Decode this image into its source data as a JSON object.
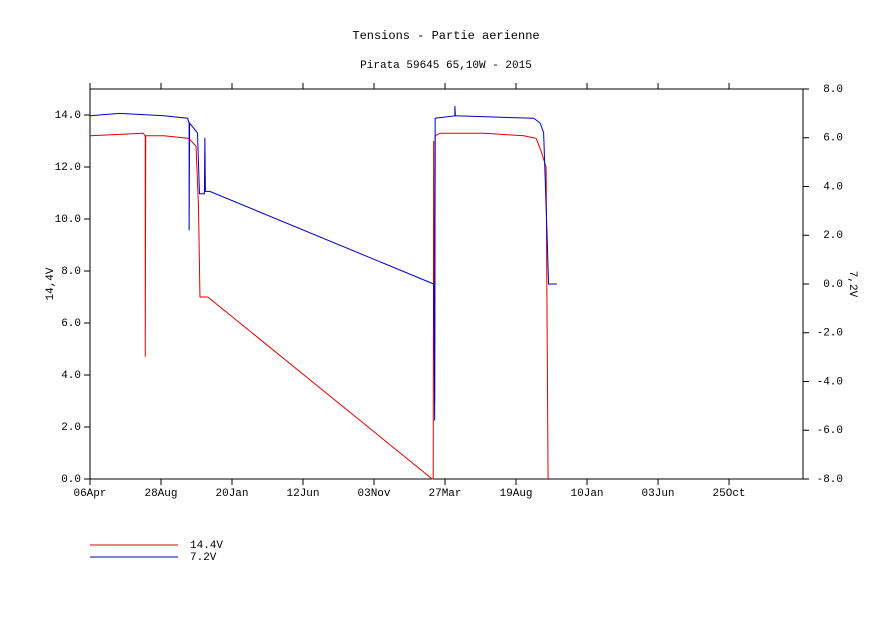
{
  "chart_data": {
    "type": "line",
    "title": "Tensions - Partie aerienne",
    "subtitle": "Pirata 59645 65,10W - 2015",
    "ylabel": "14,4V",
    "y2label": "7,2V",
    "xlim": [
      0,
      1446
    ],
    "xticks": [
      {
        "value": 0,
        "label": "06Apr"
      },
      {
        "value": 144,
        "label": "28Aug"
      },
      {
        "value": 288,
        "label": "20Jan"
      },
      {
        "value": 432,
        "label": "12Jun"
      },
      {
        "value": 576,
        "label": "03Nov"
      },
      {
        "value": 720,
        "label": "27Mar"
      },
      {
        "value": 864,
        "label": "19Aug"
      },
      {
        "value": 1008,
        "label": "10Jan"
      },
      {
        "value": 1152,
        "label": "03Jun"
      },
      {
        "value": 1296,
        "label": "25Oct"
      }
    ],
    "ylim": [
      0,
      15
    ],
    "yticks": [
      {
        "value": 0,
        "label": "0.0"
      },
      {
        "value": 2,
        "label": "2.0"
      },
      {
        "value": 4,
        "label": "4.0"
      },
      {
        "value": 6,
        "label": "6.0"
      },
      {
        "value": 8,
        "label": "8.0"
      },
      {
        "value": 10,
        "label": "10.0"
      },
      {
        "value": 12,
        "label": "12.0"
      },
      {
        "value": 14,
        "label": "14.0"
      }
    ],
    "y2lim": [
      -8,
      8
    ],
    "y2ticks": [
      {
        "value": -8,
        "label": "-8.0"
      },
      {
        "value": -6,
        "label": "-6.0"
      },
      {
        "value": -4,
        "label": "-4.0"
      },
      {
        "value": -2,
        "label": "-2.0"
      },
      {
        "value": 0,
        "label": "0.0"
      },
      {
        "value": 2,
        "label": "2.0"
      },
      {
        "value": 4,
        "label": "4.0"
      },
      {
        "value": 6,
        "label": "6.0"
      },
      {
        "value": 8,
        "label": "8.0"
      }
    ],
    "series": [
      {
        "name": "14.4V",
        "color": "#e00000",
        "axis": "y",
        "x": [
          0,
          108,
          112,
          112,
          113,
          150,
          200,
          215,
          220,
          223,
          239,
          694,
          696,
          697,
          699,
          700,
          710,
          800,
          880,
          905,
          915,
          925,
          929
        ],
        "values": [
          13.2,
          13.3,
          13.2,
          4.7,
          13.2,
          13.2,
          13.1,
          12.8,
          10.5,
          7.0,
          7.0,
          0.0,
          0.0,
          13.0,
          3,
          13.2,
          13.3,
          13.3,
          13.2,
          13.1,
          12.6,
          12.0,
          0
        ]
      },
      {
        "name": "7.2V",
        "color": "#0000c8",
        "axis": "y2",
        "x": [
          0,
          60,
          150,
          198,
          201,
          201,
          202,
          218,
          222,
          232,
          233,
          234,
          243,
          697,
          699,
          700,
          740,
          740,
          741,
          900,
          913,
          920,
          927,
          930,
          947
        ],
        "values": [
          6.9,
          7.0,
          6.9,
          6.8,
          6.6,
          2.2,
          6.6,
          6.2,
          3.7,
          3.7,
          6.0,
          3.8,
          3.8,
          0.0,
          -5.6,
          6.8,
          6.9,
          7.3,
          6.9,
          6.8,
          6.6,
          6.2,
          2.0,
          0.0,
          0.0
        ]
      }
    ]
  }
}
